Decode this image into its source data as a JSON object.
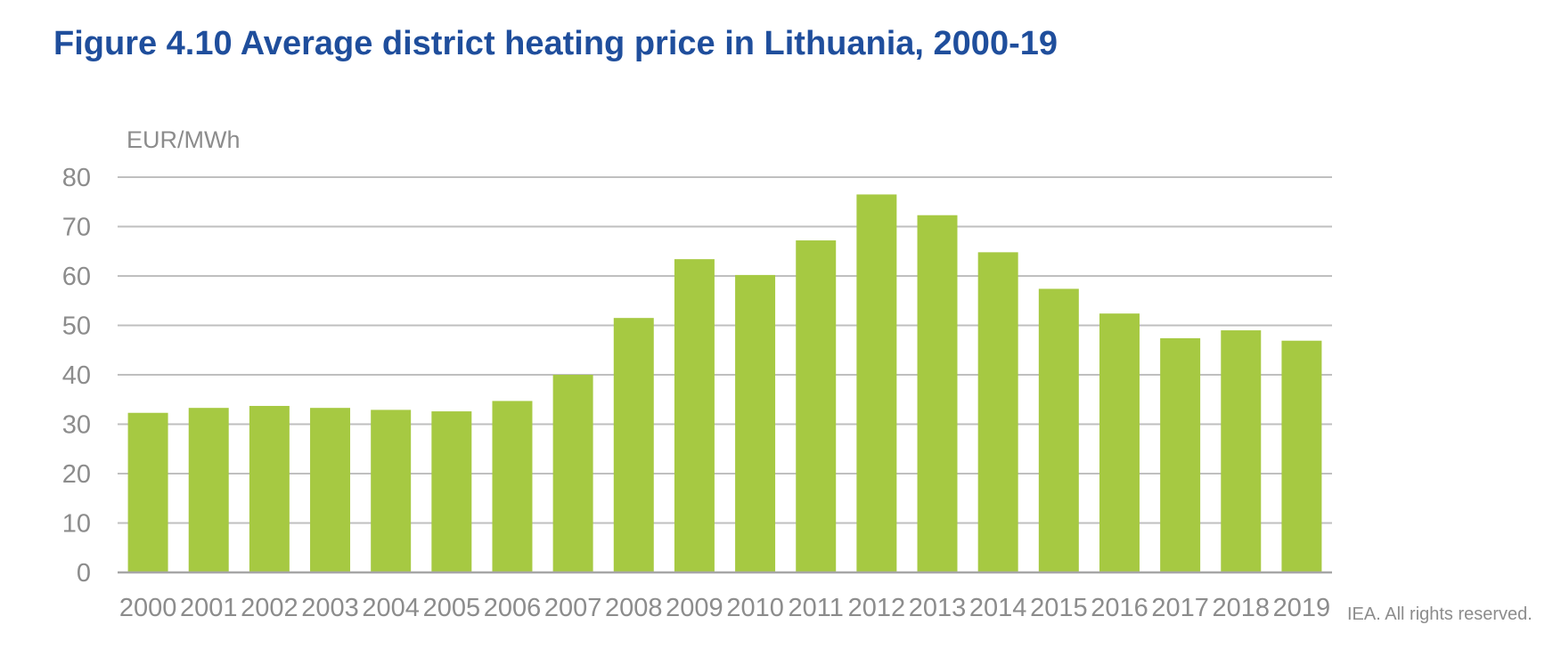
{
  "title": "Figure 4.10 Average district heating price in Lithuania, 2000-19",
  "credit": "IEA. All rights reserved.",
  "colors": {
    "title": "#1f4e9c",
    "bar": "#a6c942",
    "grid": "#bfbfbf",
    "axis": "#a6a6a6",
    "text": "#8c8c8c"
  },
  "chart_data": {
    "type": "bar",
    "ylabel": "EUR/MWh",
    "xlabel": "",
    "ylim": [
      0,
      80
    ],
    "yticks": [
      0,
      10,
      20,
      30,
      40,
      50,
      60,
      70,
      80
    ],
    "grid": true,
    "legend": "none",
    "categories": [
      "2000",
      "2001",
      "2002",
      "2003",
      "2004",
      "2005",
      "2006",
      "2007",
      "2008",
      "2009",
      "2010",
      "2011",
      "2012",
      "2013",
      "2014",
      "2015",
      "2016",
      "2017",
      "2018",
      "2019"
    ],
    "values": [
      32.3,
      33.3,
      33.7,
      33.3,
      32.9,
      32.6,
      34.7,
      40.0,
      51.5,
      63.4,
      60.2,
      67.2,
      76.5,
      72.3,
      64.8,
      57.4,
      52.4,
      47.4,
      49.0,
      46.9
    ]
  }
}
